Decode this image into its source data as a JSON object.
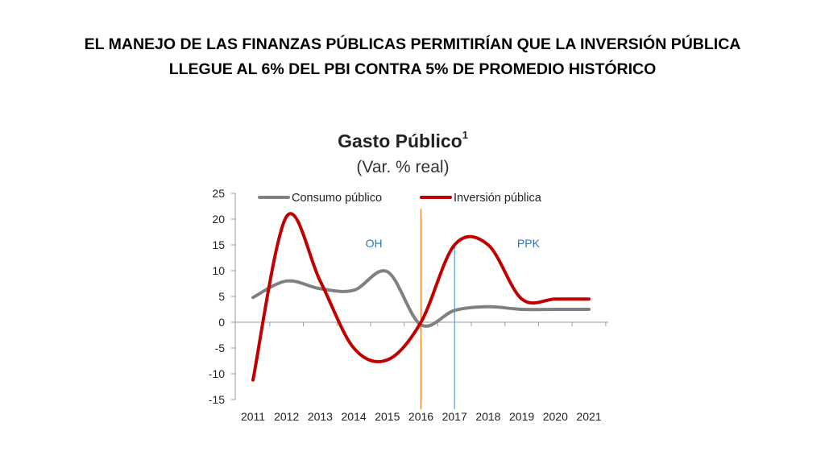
{
  "slide": {
    "title_line1": "EL MANEJO DE LAS FINANZAS PÚBLICAS PERMITIRÍAN QUE LA INVERSIÓN PÚBLICA",
    "title_line2": "LLEGUE AL 6% DEL PBI CONTRA 5% DE PROMEDIO HISTÓRICO"
  },
  "chart_data": {
    "type": "line",
    "title": "Gasto Público",
    "title_superscript": "1",
    "subtitle": "(Var. % real)",
    "x": [
      "2011",
      "2012",
      "2013",
      "2014",
      "2015",
      "2016",
      "2017",
      "2018",
      "2019",
      "2020",
      "2021"
    ],
    "yticks": [
      25,
      20,
      15,
      10,
      5,
      0,
      -5,
      -10,
      -15
    ],
    "ylim": [
      -15,
      25
    ],
    "grid": false,
    "legend_position": "top",
    "series": [
      {
        "name": "Consumo público",
        "color": "#808080",
        "values": [
          4.8,
          8.0,
          6.5,
          6.2,
          9.8,
          -0.5,
          2.3,
          3.0,
          2.5,
          2.5,
          2.5
        ]
      },
      {
        "name": "Inversión público",
        "color": "#c00000",
        "values": [
          -11.2,
          20.5,
          8.0,
          -5.0,
          -7.3,
          0.0,
          15.0,
          15.0,
          4.5,
          4.5,
          4.5
        ]
      }
    ],
    "legend_labels": [
      "Consumo público",
      "Inversión pública"
    ],
    "annotations": [
      {
        "text": "OH",
        "x": "2014.6",
        "y": 14.5,
        "color": "#2e75b6"
      },
      {
        "text": "PPK",
        "x": "2019.2",
        "y": 14.5,
        "color": "#2e75b6"
      }
    ],
    "reference_lines": [
      {
        "x": 2016,
        "color": "#e07b20",
        "from": -15,
        "to": 22
      },
      {
        "x": 2017,
        "color": "#5b9bd5",
        "from": -15,
        "to": 15
      }
    ]
  }
}
